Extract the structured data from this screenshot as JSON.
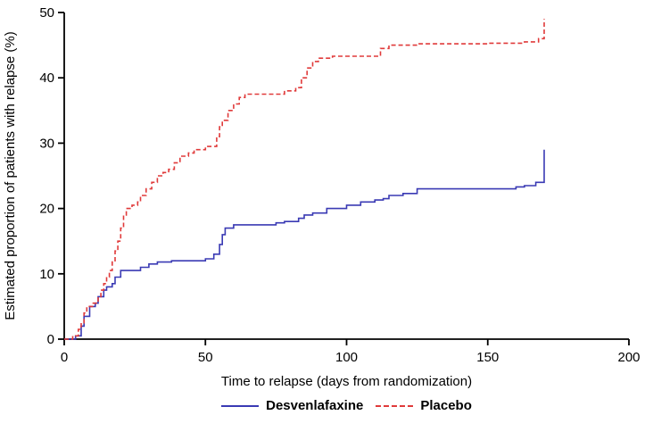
{
  "chart_data": {
    "type": "line",
    "subtype": "step",
    "title": "",
    "xlabel": "Time to relapse (days from randomization)",
    "ylabel": "Estimated proportion of patients with relapse (%)",
    "xlim": [
      0,
      200
    ],
    "ylim": [
      0,
      50
    ],
    "xticks": [
      0,
      50,
      100,
      150,
      200
    ],
    "yticks": [
      0,
      10,
      20,
      30,
      40,
      50
    ],
    "grid": false,
    "legend_position": "bottom",
    "series": [
      {
        "name": "Desvenlafaxine",
        "color": "#3a3ab4",
        "dash": "solid",
        "points": [
          [
            0,
            0
          ],
          [
            4,
            0.5
          ],
          [
            6,
            2
          ],
          [
            7,
            3.5
          ],
          [
            9,
            5
          ],
          [
            11,
            5.5
          ],
          [
            12,
            6.5
          ],
          [
            14,
            7.5
          ],
          [
            15,
            8
          ],
          [
            17,
            8.5
          ],
          [
            18,
            9.5
          ],
          [
            20,
            10.5
          ],
          [
            27,
            11
          ],
          [
            30,
            11.5
          ],
          [
            33,
            11.8
          ],
          [
            38,
            12
          ],
          [
            50,
            12.3
          ],
          [
            53,
            13
          ],
          [
            55,
            14.5
          ],
          [
            56,
            16
          ],
          [
            57,
            17
          ],
          [
            60,
            17.5
          ],
          [
            75,
            17.8
          ],
          [
            78,
            18
          ],
          [
            83,
            18.5
          ],
          [
            85,
            19
          ],
          [
            88,
            19.3
          ],
          [
            93,
            20
          ],
          [
            100,
            20.5
          ],
          [
            105,
            21
          ],
          [
            110,
            21.3
          ],
          [
            113,
            21.5
          ],
          [
            115,
            22
          ],
          [
            120,
            22.3
          ],
          [
            125,
            23
          ],
          [
            160,
            23.3
          ],
          [
            163,
            23.5
          ],
          [
            167,
            24
          ],
          [
            170,
            29
          ]
        ]
      },
      {
        "name": "Placebo",
        "color": "#e03a3a",
        "dash": "dashed",
        "points": [
          [
            0,
            0
          ],
          [
            3,
            0.5
          ],
          [
            5,
            1.5
          ],
          [
            6,
            2.5
          ],
          [
            7,
            4
          ],
          [
            8,
            5
          ],
          [
            10,
            5.5
          ],
          [
            12,
            6.5
          ],
          [
            13,
            7.5
          ],
          [
            14,
            8.5
          ],
          [
            15,
            9.5
          ],
          [
            16,
            10.5
          ],
          [
            17,
            12
          ],
          [
            18,
            13.5
          ],
          [
            19,
            15
          ],
          [
            20,
            17
          ],
          [
            21,
            19
          ],
          [
            22,
            20
          ],
          [
            24,
            20.5
          ],
          [
            26,
            21
          ],
          [
            27,
            22
          ],
          [
            29,
            23
          ],
          [
            31,
            24
          ],
          [
            33,
            25
          ],
          [
            35,
            25.5
          ],
          [
            37,
            26
          ],
          [
            39,
            27
          ],
          [
            41,
            28
          ],
          [
            44,
            28.5
          ],
          [
            46,
            29
          ],
          [
            50,
            29.5
          ],
          [
            54,
            31
          ],
          [
            55,
            32.5
          ],
          [
            56,
            33.5
          ],
          [
            58,
            35
          ],
          [
            60,
            36
          ],
          [
            62,
            37
          ],
          [
            64,
            37.5
          ],
          [
            78,
            38
          ],
          [
            82,
            38.5
          ],
          [
            84,
            40
          ],
          [
            86,
            41.5
          ],
          [
            88,
            42.5
          ],
          [
            90,
            43
          ],
          [
            95,
            43.3
          ],
          [
            112,
            44.5
          ],
          [
            115,
            45
          ],
          [
            125,
            45.2
          ],
          [
            150,
            45.3
          ],
          [
            163,
            45.5
          ],
          [
            168,
            46
          ],
          [
            170,
            49
          ]
        ]
      }
    ]
  }
}
